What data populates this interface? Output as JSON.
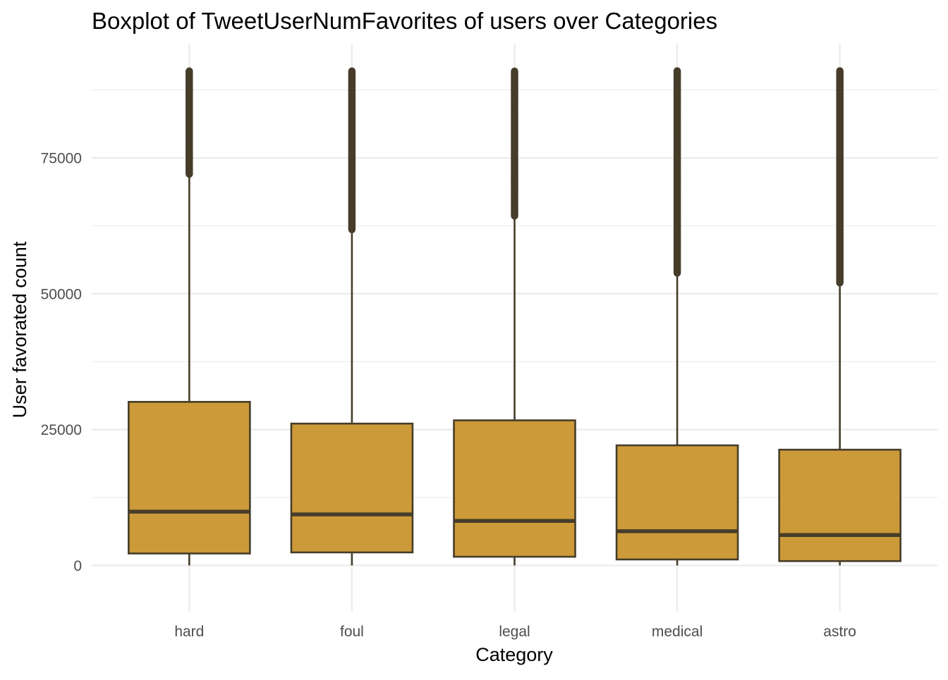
{
  "chart_data": {
    "type": "boxplot",
    "title": "Boxplot of TweetUserNumFavorites of users over Categories",
    "xlabel": "Category",
    "ylabel": "User favorated count",
    "categories": [
      "hard",
      "foul",
      "legal",
      "medical",
      "astro"
    ],
    "ylim": [
      -8500,
      96000
    ],
    "y_ticks": [
      0,
      25000,
      50000,
      75000
    ],
    "y_tick_labels": [
      "0",
      "25000",
      "50000",
      "75000"
    ],
    "y_minor_ticks": [
      12500,
      37500,
      62500,
      87500
    ],
    "grid": true,
    "legend": "none",
    "boxes": [
      {
        "category": "hard",
        "whisker_low": 0,
        "q1": 2200,
        "median": 9900,
        "q3": 30100,
        "whisker_high": 72000,
        "outliers_from": 72000,
        "outliers_to": 91000
      },
      {
        "category": "foul",
        "whisker_low": 0,
        "q1": 2400,
        "median": 9400,
        "q3": 26100,
        "whisker_high": 61800,
        "outliers_from": 61800,
        "outliers_to": 91000
      },
      {
        "category": "legal",
        "whisker_low": 0,
        "q1": 1600,
        "median": 8200,
        "q3": 26700,
        "whisker_high": 64300,
        "outliers_from": 64300,
        "outliers_to": 91000
      },
      {
        "category": "medical",
        "whisker_low": 0,
        "q1": 1100,
        "median": 6300,
        "q3": 22100,
        "whisker_high": 53800,
        "outliers_from": 53800,
        "outliers_to": 91000
      },
      {
        "category": "astro",
        "whisker_low": 0,
        "q1": 800,
        "median": 5600,
        "q3": 21300,
        "whisker_high": 52000,
        "outliers_from": 52000,
        "outliers_to": 91000
      }
    ],
    "colors": {
      "box_fill": "#CC9A38",
      "box_line": "#463D2A",
      "outlier": "#463D2A",
      "grid": "#EBEBEB",
      "tick_text": "#4D4D4D",
      "background": "#FFFFFF"
    }
  }
}
